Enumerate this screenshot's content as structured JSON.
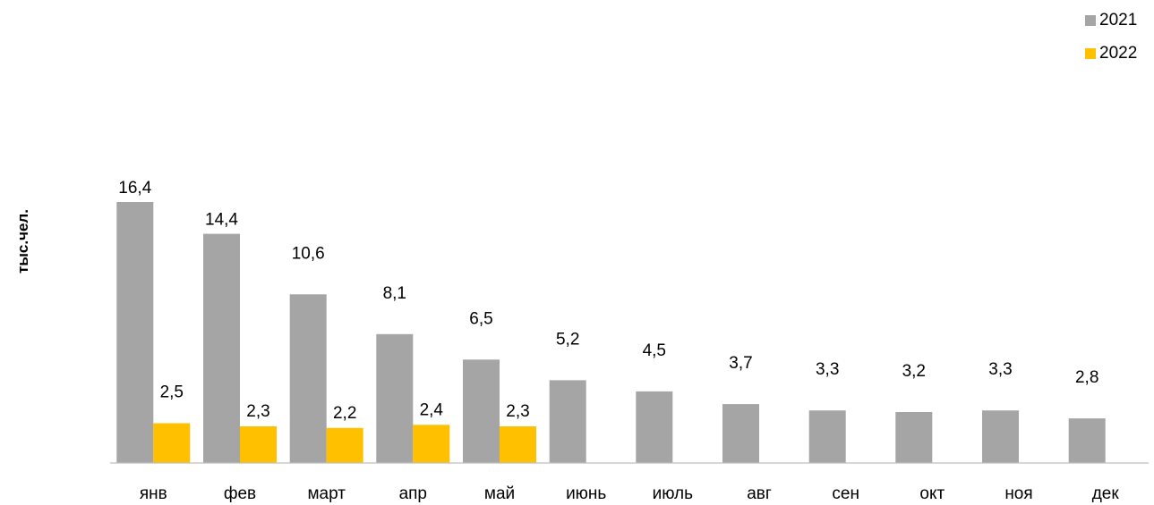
{
  "chart_data": {
    "type": "bar",
    "categories": [
      "янв",
      "фев",
      "март",
      "апр",
      "май",
      "июнь",
      "июль",
      "авг",
      "сен",
      "окт",
      "ноя",
      "дек"
    ],
    "series": [
      {
        "name": "2021",
        "color": "#a5a5a5",
        "values": [
          16.4,
          14.4,
          10.6,
          8.1,
          6.5,
          5.2,
          4.5,
          3.7,
          3.3,
          3.2,
          3.3,
          2.8
        ]
      },
      {
        "name": "2022",
        "color": "#ffc000",
        "values": [
          2.5,
          2.3,
          2.2,
          2.4,
          2.3,
          null,
          null,
          null,
          null,
          null,
          null,
          null
        ]
      }
    ],
    "data_labels": [
      [
        "16,4",
        "14,4",
        "10,6",
        "8,1",
        "6,5",
        "5,2",
        "4,5",
        "3,7",
        "3,3",
        "3,2",
        "3,3",
        "2,8"
      ],
      [
        "2,5",
        "2,3",
        "2,2",
        "2,4",
        "2,3",
        "",
        "",
        "",
        "",
        "",
        "",
        ""
      ]
    ],
    "ylabel": "тыс.чел.",
    "ylim": [
      0,
      16.4
    ],
    "grid": false,
    "legend_position": "top-right"
  }
}
